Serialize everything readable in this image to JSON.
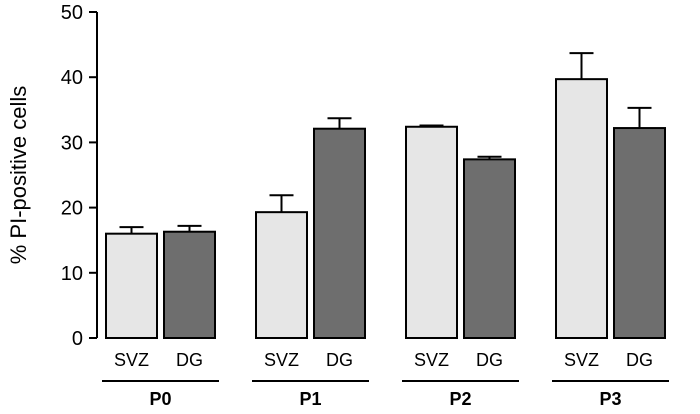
{
  "chart_data": {
    "type": "bar",
    "ylabel": "% PI-positive cells",
    "xlabel": "",
    "ylim": [
      0,
      50
    ],
    "yticks": [
      0,
      10,
      20,
      30,
      40,
      50
    ],
    "grid": false,
    "groups": [
      {
        "label": "P0",
        "bars": [
          {
            "category": "SVZ",
            "value": 16.0,
            "error": 1.0
          },
          {
            "category": "DG",
            "value": 16.3,
            "error": 0.9
          }
        ]
      },
      {
        "label": "P1",
        "bars": [
          {
            "category": "SVZ",
            "value": 19.3,
            "error": 2.6
          },
          {
            "category": "DG",
            "value": 32.1,
            "error": 1.6
          }
        ]
      },
      {
        "label": "P2",
        "bars": [
          {
            "category": "SVZ",
            "value": 32.4,
            "error": 0.2
          },
          {
            "category": "DG",
            "value": 27.4,
            "error": 0.4
          }
        ]
      },
      {
        "label": "P3",
        "bars": [
          {
            "category": "SVZ",
            "value": 39.7,
            "error": 4.0
          },
          {
            "category": "DG",
            "value": 32.2,
            "error": 3.1
          }
        ]
      }
    ],
    "colors": {
      "SVZ": "#e6e6e6",
      "DG": "#6e6e6e"
    }
  }
}
